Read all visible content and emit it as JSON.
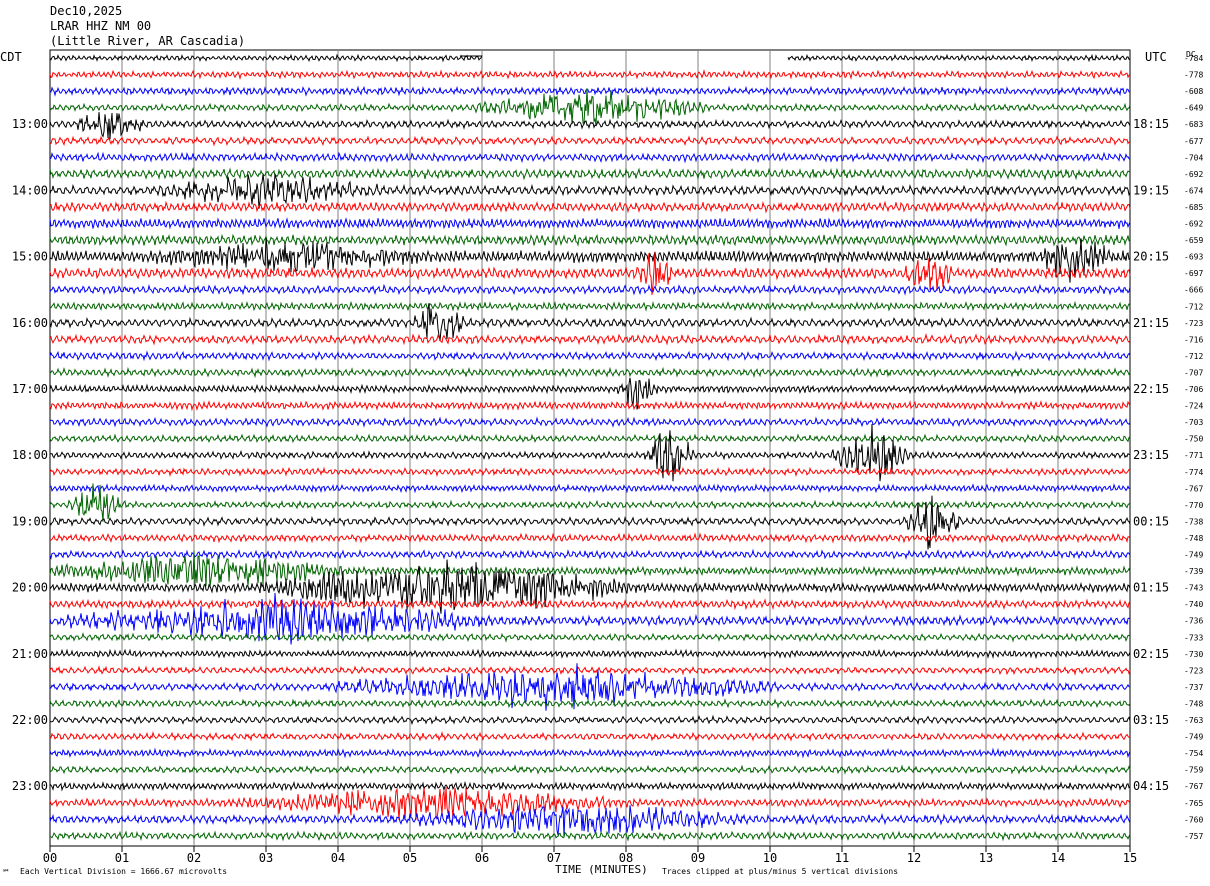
{
  "header": {
    "date": "Dec10,2025",
    "station": "LRAR HHZ NM 00",
    "location": "(Little River, AR Cascadia)"
  },
  "left_tz": "CDT",
  "right_tz": "UTC",
  "dc_label": "DC",
  "footer": {
    "scale_note": "Each Vertical Division = 1666.67 microvolts",
    "clip_note": "Traces clipped at plus/minus 5 vertical divisions",
    "mark": "℠"
  },
  "colors": {
    "trace_cycle": [
      "#000000",
      "#ff0000",
      "#0000ff",
      "#006400"
    ],
    "grid": "#808080"
  },
  "chart_data": {
    "type": "line",
    "title": "",
    "xlabel": "TIME (MINUTES)",
    "ylabel": "",
    "xlim": [
      0,
      15
    ],
    "x_ticks": [
      "00",
      "01",
      "02",
      "03",
      "04",
      "05",
      "06",
      "07",
      "08",
      "09",
      "10",
      "11",
      "12",
      "13",
      "14",
      "15"
    ],
    "grid": true,
    "n_traces": 48,
    "left_hour_labels": [
      "13:00",
      "14:00",
      "15:00",
      "16:00",
      "17:00",
      "18:00",
      "19:00",
      "20:00",
      "21:00",
      "22:00",
      "23:00"
    ],
    "right_hour_labels": [
      "18:15",
      "19:15",
      "20:15",
      "21:15",
      "22:15",
      "23:15",
      "00:15",
      "01:15",
      "02:15",
      "03:15",
      "04:15"
    ],
    "hour_label_first_trace": 4,
    "hour_label_every": 4,
    "dc_offsets": [
      -784,
      -778,
      -608,
      -649,
      -683,
      -677,
      -704,
      -692,
      -674,
      -685,
      -692,
      -659,
      -693,
      -697,
      -666,
      -712,
      -723,
      -716,
      -712,
      -707,
      -706,
      -724,
      -703,
      -750,
      -771,
      -774,
      -767,
      -770,
      -738,
      -748,
      -749,
      -739,
      -743,
      -740,
      -736,
      -733,
      -730,
      -723,
      -737,
      -748,
      -763,
      -749,
      -754,
      -759,
      -767,
      -765,
      -760,
      -757
    ],
    "trace_amplitude": [
      0.4,
      0.5,
      0.55,
      0.5,
      0.55,
      0.55,
      0.6,
      0.7,
      0.7,
      0.7,
      0.75,
      0.75,
      0.9,
      0.8,
      0.6,
      0.55,
      0.65,
      0.65,
      0.55,
      0.55,
      0.55,
      0.55,
      0.55,
      0.5,
      0.5,
      0.5,
      0.5,
      0.5,
      0.55,
      0.55,
      0.55,
      0.6,
      0.7,
      0.6,
      0.7,
      0.5,
      0.5,
      0.5,
      0.55,
      0.5,
      0.5,
      0.5,
      0.5,
      0.5,
      0.55,
      0.6,
      0.65,
      0.55
    ],
    "data_gap": {
      "trace": 0,
      "x_start": 6.0,
      "x_end": 10.25
    },
    "events": [
      {
        "trace": 3,
        "x0": 6.0,
        "x1": 9.0,
        "amp": 1.8
      },
      {
        "trace": 4,
        "x0": 0.5,
        "x1": 1.2,
        "amp": 1.6
      },
      {
        "trace": 8,
        "x0": 1.5,
        "x1": 4.5,
        "amp": 1.6
      },
      {
        "trace": 12,
        "x0": 1.5,
        "x1": 5.0,
        "amp": 1.6
      },
      {
        "trace": 12,
        "x0": 13.8,
        "x1": 14.6,
        "amp": 2.4
      },
      {
        "trace": 13,
        "x0": 8.3,
        "x1": 8.5,
        "amp": 2.4
      },
      {
        "trace": 13,
        "x0": 12.0,
        "x1": 12.4,
        "amp": 2.6
      },
      {
        "trace": 16,
        "x0": 5.2,
        "x1": 5.6,
        "amp": 2.8
      },
      {
        "trace": 20,
        "x0": 8.0,
        "x1": 8.3,
        "amp": 2.0
      },
      {
        "trace": 24,
        "x0": 8.4,
        "x1": 8.8,
        "amp": 3.0
      },
      {
        "trace": 24,
        "x0": 11.0,
        "x1": 11.8,
        "amp": 3.2
      },
      {
        "trace": 27,
        "x0": 0.4,
        "x1": 0.9,
        "amp": 2.2
      },
      {
        "trace": 28,
        "x0": 12.0,
        "x1": 12.5,
        "amp": 3.0
      },
      {
        "trace": 31,
        "x0": 0.0,
        "x1": 4.0,
        "amp": 1.8
      },
      {
        "trace": 32,
        "x0": 3.0,
        "x1": 8.0,
        "amp": 2.8
      },
      {
        "trace": 34,
        "x0": 0.3,
        "x1": 6.0,
        "amp": 2.2
      },
      {
        "trace": 38,
        "x0": 4.0,
        "x1": 10.0,
        "amp": 2.0
      },
      {
        "trace": 45,
        "x0": 2.5,
        "x1": 8.0,
        "amp": 1.6
      },
      {
        "trace": 46,
        "x0": 5.0,
        "x1": 9.5,
        "amp": 1.6
      }
    ]
  }
}
